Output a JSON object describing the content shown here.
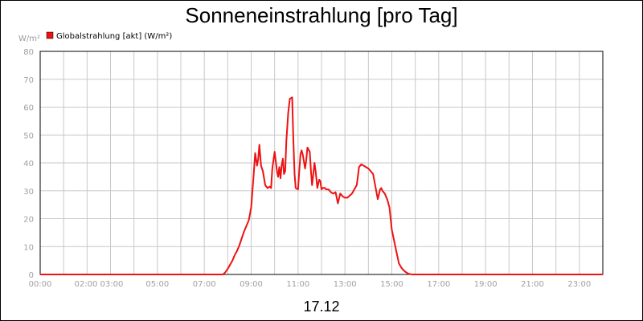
{
  "chart_data": {
    "type": "line",
    "title": "Sonneneinstrahlung [pro Tag]",
    "xlabel": "17.12",
    "unit_label": "W/m²",
    "legend": {
      "placement": "top-left"
    },
    "grid": true,
    "xlim": [
      0,
      24
    ],
    "ylim": [
      0,
      80
    ],
    "yticks": [
      0,
      10,
      20,
      30,
      40,
      50,
      60,
      70,
      80
    ],
    "xtick_labels": [
      "00:00",
      "02:00 03:00",
      "05:00",
      "07:00",
      "09:00",
      "11:00",
      "13:00",
      "15:00",
      "17:00",
      "19:00",
      "21:00",
      "23:00"
    ],
    "xtick_positions": [
      0,
      2.5,
      5,
      7,
      9,
      11,
      13,
      15,
      17,
      19,
      21,
      23
    ],
    "series": [
      {
        "name": "Globalstrahlung [akt] (W/m²)",
        "color": "#ee1111",
        "x": [
          0,
          7.8,
          7.9,
          8.0,
          8.1,
          8.2,
          8.3,
          8.4,
          8.5,
          8.6,
          8.7,
          8.8,
          8.9,
          9.0,
          9.1,
          9.17,
          9.25,
          9.3,
          9.35,
          9.42,
          9.5,
          9.6,
          9.7,
          9.8,
          9.85,
          9.9,
          10.0,
          10.1,
          10.15,
          10.2,
          10.25,
          10.3,
          10.35,
          10.4,
          10.45,
          10.5,
          10.58,
          10.65,
          10.75,
          10.8,
          10.85,
          10.9,
          11.0,
          11.05,
          11.1,
          11.15,
          11.2,
          11.3,
          11.35,
          11.4,
          11.5,
          11.55,
          11.6,
          11.7,
          11.75,
          11.82,
          11.9,
          11.95,
          12.0,
          12.05,
          12.1,
          12.15,
          12.2,
          12.3,
          12.35,
          12.4,
          12.5,
          12.6,
          12.7,
          12.8,
          12.9,
          13.0,
          13.1,
          13.3,
          13.5,
          13.55,
          13.6,
          13.7,
          13.8,
          14.0,
          14.1,
          14.2,
          14.3,
          14.4,
          14.5,
          14.55,
          14.6,
          14.7,
          14.8,
          14.9,
          14.95,
          15.0,
          15.05,
          15.1,
          15.15,
          15.2,
          15.25,
          15.3,
          15.4,
          15.5,
          15.6,
          15.7,
          15.8,
          15.9,
          16.0,
          16.1,
          16.2,
          16.3,
          16.4,
          16.5,
          16.6,
          16.7,
          16.8,
          17.0,
          24
        ],
        "y": [
          0,
          0,
          0.8,
          2,
          3.5,
          5,
          7,
          8.5,
          10.5,
          13,
          15.5,
          17.5,
          19.5,
          24,
          35,
          43.5,
          39,
          41.5,
          46.5,
          39,
          37,
          32,
          31,
          31.5,
          31,
          38,
          44,
          37,
          35,
          38.5,
          34.5,
          39,
          41.5,
          36,
          37,
          48,
          58,
          63,
          63.5,
          48,
          36,
          31,
          30.5,
          37,
          43,
          44.5,
          43,
          38,
          41,
          45.5,
          44,
          37,
          32,
          40,
          37,
          31,
          34,
          33.5,
          30.5,
          31,
          31,
          31,
          30.5,
          30.5,
          30,
          29.5,
          29,
          29.5,
          25.5,
          29,
          28,
          27.5,
          27.5,
          29,
          32,
          35,
          38.5,
          39.5,
          39,
          38,
          37,
          36,
          31.5,
          27,
          30.5,
          31,
          30,
          29,
          27,
          24,
          20,
          16,
          14,
          12,
          10,
          8,
          6,
          4,
          2.5,
          1.5,
          0.8,
          0.3,
          0.1,
          0,
          0,
          0,
          0,
          0,
          0,
          0,
          0,
          0,
          0,
          0,
          0
        ]
      }
    ]
  }
}
